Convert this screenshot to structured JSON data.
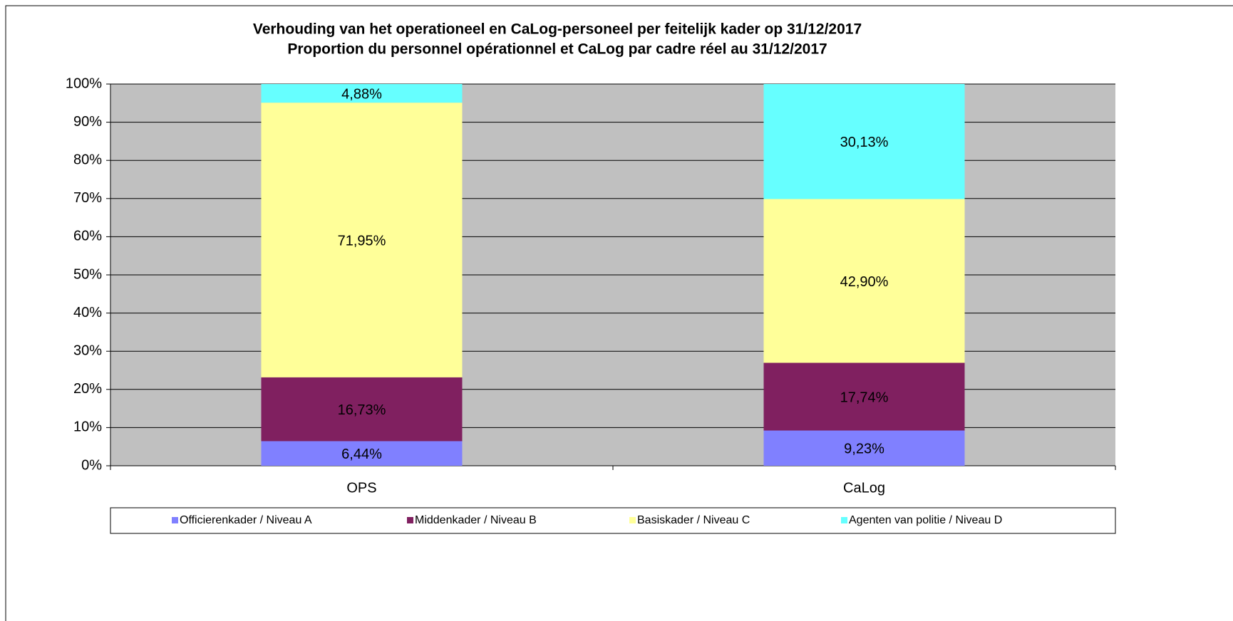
{
  "chart_data": {
    "type": "stacked_bar",
    "title": "Verhouding van het operationeel en CaLog-personeel per feitelijk kader op 31/12/2017",
    "subtitle": "Proportion du personnel opérationnel et CaLog par cadre réel au 31/12/2017",
    "categories": [
      "OPS",
      "CaLog"
    ],
    "series": [
      {
        "name": "Officierenkader / Niveau A",
        "color": "#8080ff",
        "values": [
          6.44,
          9.23
        ],
        "value_labels": [
          "6,44%",
          "9,23%"
        ]
      },
      {
        "name": "Middenkader / Niveau B",
        "color": "#802060",
        "values": [
          16.73,
          17.74
        ],
        "value_labels": [
          "16,73%",
          "17,74%"
        ]
      },
      {
        "name": "Basiskader / Niveau C",
        "color": "#ffff99",
        "values": [
          71.95,
          42.9
        ],
        "value_labels": [
          "71,95%",
          "42,90%"
        ]
      },
      {
        "name": "Agenten van politie / Niveau D",
        "color": "#66ffff",
        "values": [
          4.88,
          30.13
        ],
        "value_labels": [
          "4,88%",
          "30,13%"
        ]
      }
    ],
    "ylim": [
      0,
      100
    ],
    "yticks": [
      {
        "value": 0,
        "label": "0%"
      },
      {
        "value": 10,
        "label": "10%"
      },
      {
        "value": 20,
        "label": "20%"
      },
      {
        "value": 30,
        "label": "30%"
      },
      {
        "value": 40,
        "label": "40%"
      },
      {
        "value": 50,
        "label": "50%"
      },
      {
        "value": 60,
        "label": "60%"
      },
      {
        "value": 70,
        "label": "70%"
      },
      {
        "value": 80,
        "label": "80%"
      },
      {
        "value": 90,
        "label": "90%"
      },
      {
        "value": 100,
        "label": "100%"
      }
    ],
    "grid": true,
    "legend": "bottom"
  }
}
